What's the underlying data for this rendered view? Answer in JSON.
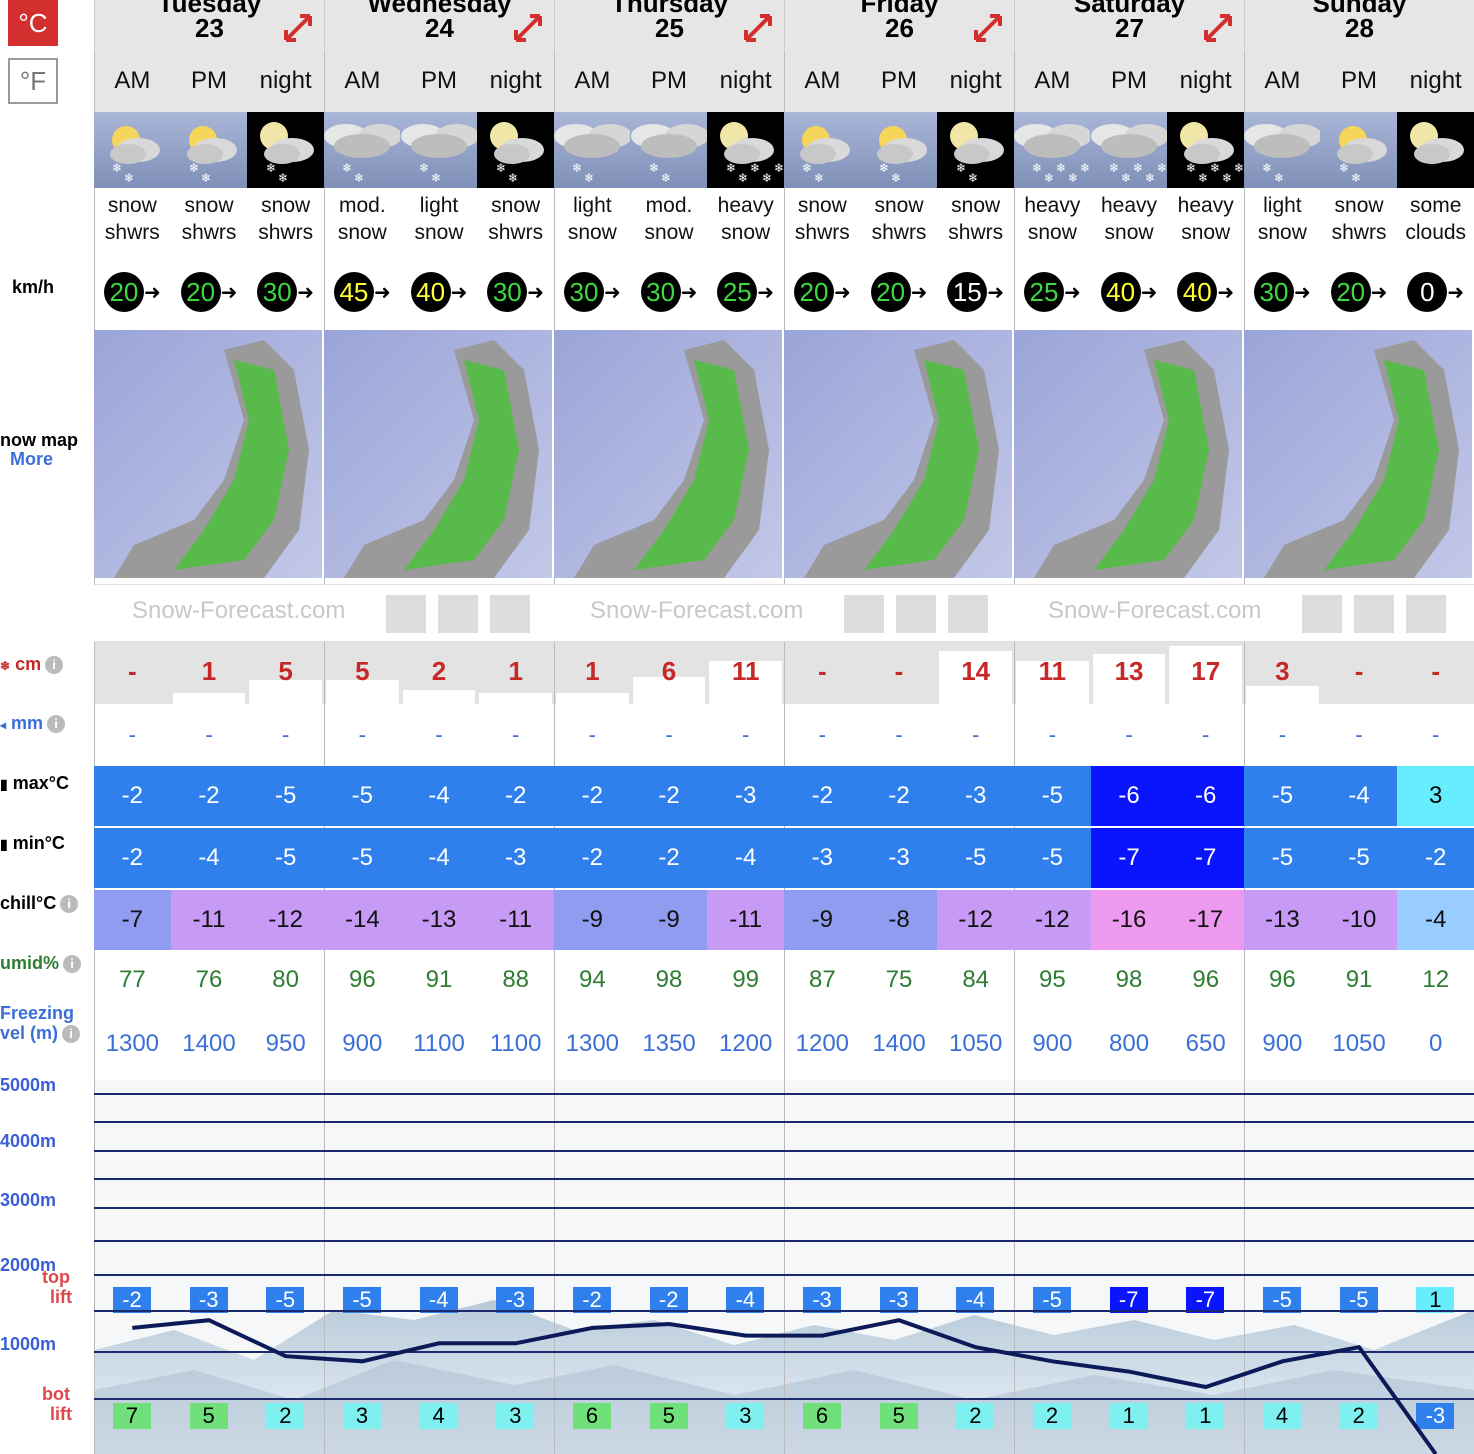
{
  "units": {
    "celsius": "°C",
    "fahrenheit": "°F"
  },
  "labels": {
    "wind": "km/h",
    "snow_map": "now map",
    "snow_map_more": "More",
    "snow": "cm",
    "rain": "mm",
    "max": "max°C",
    "min": "min°C",
    "chill": "chill°C",
    "humid": "umid%",
    "freezing1": "Freezing",
    "freezing2": "vel (m)",
    "alt5000": "5000m",
    "alt4000": "4000m",
    "alt3000": "3000m",
    "alt2000": "2000m",
    "alt1000": "1000m",
    "top1": "top",
    "top2": "lift",
    "bot1": "bot",
    "bot2": "lift",
    "info": "i"
  },
  "banner": {
    "text": "Snow-Forecast.com"
  },
  "days": [
    {
      "name": "Tuesday",
      "num": "23"
    },
    {
      "name": "Wednesday",
      "num": "24"
    },
    {
      "name": "Thursday",
      "num": "25"
    },
    {
      "name": "Friday",
      "num": "26"
    },
    {
      "name": "Saturday",
      "num": "27"
    },
    {
      "name": "Sunday",
      "num": "28"
    }
  ],
  "periods": [
    "AM",
    "PM",
    "night",
    "AM",
    "PM",
    "night",
    "AM",
    "PM",
    "night",
    "AM",
    "PM",
    "night",
    "AM",
    "PM",
    "night",
    "AM",
    "PM",
    "night"
  ],
  "icons": [
    "snow-shower-day",
    "snow-shower-day",
    "snow-shower-night",
    "cloud-snow",
    "cloud-snow",
    "snow-shower-night",
    "cloud-snow",
    "cloud-snow",
    "heavy-snow-night",
    "snow-shower-day",
    "snow-shower-day",
    "snow-shower-night",
    "heavy-snow",
    "heavy-snow",
    "heavy-snow-night",
    "cloud-snow",
    "snow-shower-day",
    "cloud-night"
  ],
  "desc1": [
    "snow",
    "snow",
    "snow",
    "mod.",
    "light",
    "snow",
    "light",
    "mod.",
    "heavy",
    "snow",
    "snow",
    "snow",
    "heavy",
    "heavy",
    "heavy",
    "light",
    "snow",
    "some"
  ],
  "desc2": [
    "shwrs",
    "shwrs",
    "shwrs",
    "snow",
    "snow",
    "shwrs",
    "snow",
    "snow",
    "snow",
    "shwrs",
    "shwrs",
    "shwrs",
    "snow",
    "snow",
    "snow",
    "snow",
    "shwrs",
    "clouds"
  ],
  "wind": [
    "20",
    "20",
    "30",
    "45",
    "40",
    "30",
    "30",
    "30",
    "25",
    "20",
    "20",
    "15",
    "25",
    "40",
    "40",
    "30",
    "20",
    "0"
  ],
  "wind_color": [
    "#3fd83f",
    "#3fd83f",
    "#3fd83f",
    "#ffff33",
    "#ffff33",
    "#3fd83f",
    "#3fd83f",
    "#3fd83f",
    "#3fd83f",
    "#3fd83f",
    "#3fd83f",
    "#ffffff",
    "#3fd83f",
    "#ffff33",
    "#ffff33",
    "#3fd83f",
    "#3fd83f",
    "#ffffff"
  ],
  "snow": [
    "-",
    "1",
    "5",
    "5",
    "2",
    "1",
    "1",
    "6",
    "11",
    "-",
    "-",
    "14",
    "11",
    "13",
    "17",
    "3",
    "-",
    "-"
  ],
  "snow_amount": [
    0,
    1,
    5,
    5,
    2,
    1,
    1,
    6,
    11,
    0,
    0,
    14,
    11,
    13,
    17,
    3,
    0,
    0
  ],
  "rain": [
    "-",
    "-",
    "-",
    "-",
    "-",
    "-",
    "-",
    "-",
    "-",
    "-",
    "-",
    "-",
    "-",
    "-",
    "-",
    "-",
    "-",
    "-"
  ],
  "max": [
    "-2",
    "-2",
    "-5",
    "-5",
    "-4",
    "-2",
    "-2",
    "-2",
    "-3",
    "-2",
    "-2",
    "-3",
    "-5",
    "-6",
    "-6",
    "-5",
    "-4",
    "3"
  ],
  "min": [
    "-2",
    "-4",
    "-5",
    "-5",
    "-4",
    "-3",
    "-2",
    "-2",
    "-4",
    "-3",
    "-3",
    "-5",
    "-5",
    "-7",
    "-7",
    "-5",
    "-5",
    "-2"
  ],
  "chill": [
    "-7",
    "-11",
    "-12",
    "-14",
    "-13",
    "-11",
    "-9",
    "-9",
    "-11",
    "-9",
    "-8",
    "-12",
    "-12",
    "-16",
    "-17",
    "-13",
    "-10",
    "-4"
  ],
  "humid": [
    "77",
    "76",
    "80",
    "96",
    "91",
    "88",
    "94",
    "98",
    "99",
    "87",
    "75",
    "84",
    "95",
    "98",
    "96",
    "96",
    "91",
    "12"
  ],
  "freezing": [
    "1300",
    "1400",
    "950",
    "900",
    "1100",
    "1100",
    "1300",
    "1350",
    "1200",
    "1200",
    "1400",
    "1050",
    "900",
    "800",
    "650",
    "900",
    "1050",
    "0"
  ],
  "top_lift": [
    "-2",
    "-3",
    "-5",
    "-5",
    "-4",
    "-3",
    "-2",
    "-2",
    "-4",
    "-3",
    "-3",
    "-4",
    "-5",
    "-7",
    "-7",
    "-5",
    "-5",
    "1"
  ],
  "bot_lift": [
    "7",
    "5",
    "2",
    "3",
    "4",
    "3",
    "6",
    "5",
    "3",
    "6",
    "5",
    "2",
    "2",
    "1",
    "1",
    "4",
    "2",
    "-3"
  ],
  "colors": {
    "temp_blue": "#2f80ed",
    "temp_dark": "#0a14ff",
    "temp_cyan": "#66eeff",
    "chill_lilac": "#c69af5",
    "chill_blue": "#8f9cf0",
    "chill_pink": "#ee99f0",
    "chill_light": "#99ccff",
    "accent_red": "#d32f2f"
  }
}
